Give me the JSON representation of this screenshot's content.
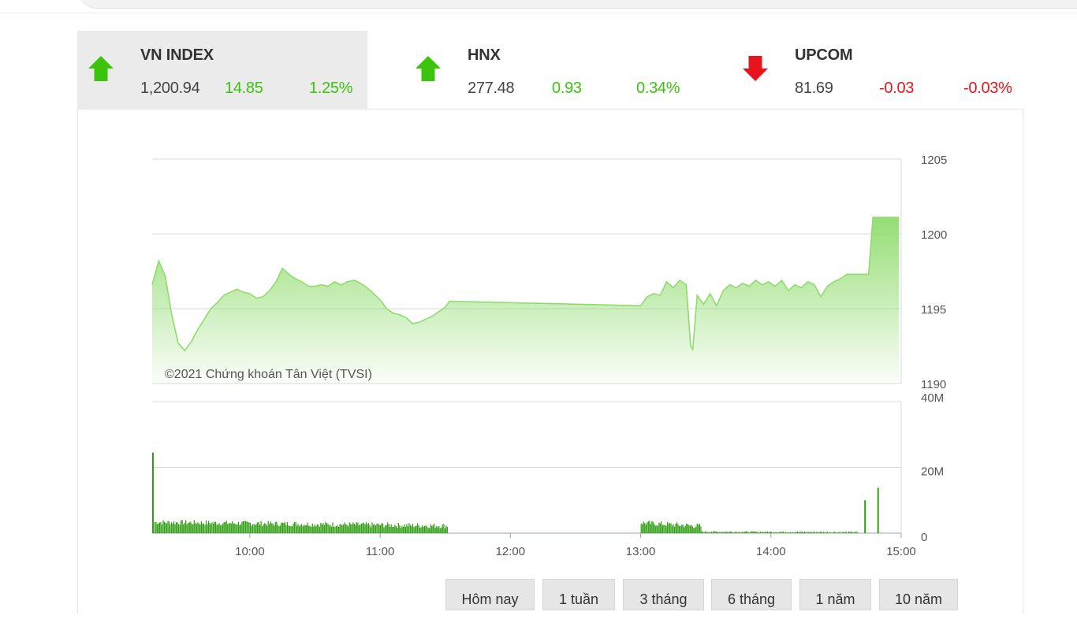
{
  "tickers": [
    {
      "name": "VN INDEX",
      "value": "1,200.94",
      "change": "14.85",
      "percent": "1.25%",
      "direction": "up"
    },
    {
      "name": "HNX",
      "value": "277.48",
      "change": "0.93",
      "percent": "0.34%",
      "direction": "up"
    },
    {
      "name": "UPCOM",
      "value": "81.69",
      "change": "-0.03",
      "percent": "-0.03%",
      "direction": "down"
    }
  ],
  "colors": {
    "up": "#3cc30c",
    "down": "#e8141c",
    "line": "#8fdc6d",
    "volume": "#2f9e10"
  },
  "chart_data": {
    "type": "area",
    "watermark": "©2021 Chứng khoán Tân Việt (TVSI)",
    "x_ticks": [
      "10:00",
      "11:00",
      "12:00",
      "13:00",
      "14:00",
      "15:00"
    ],
    "x_range": [
      "09:15",
      "15:00"
    ],
    "price": {
      "ylim": [
        1190,
        1205
      ],
      "y_ticks": [
        "1205",
        "1200",
        "1195",
        "1190"
      ],
      "points": [
        [
          "09:15",
          1196.6
        ],
        [
          "09:18",
          1198.2
        ],
        [
          "09:21",
          1197.2
        ],
        [
          "09:24",
          1194.6
        ],
        [
          "09:27",
          1192.7
        ],
        [
          "09:30",
          1192.2
        ],
        [
          "09:33",
          1192.8
        ],
        [
          "09:36",
          1193.6
        ],
        [
          "09:39",
          1194.3
        ],
        [
          "09:42",
          1195.0
        ],
        [
          "09:45",
          1195.4
        ],
        [
          "09:48",
          1195.9
        ],
        [
          "09:51",
          1196.1
        ],
        [
          "09:54",
          1196.3
        ],
        [
          "09:57",
          1196.1
        ],
        [
          "10:00",
          1196.0
        ],
        [
          "10:03",
          1195.7
        ],
        [
          "10:06",
          1195.8
        ],
        [
          "10:09",
          1196.2
        ],
        [
          "10:12",
          1196.8
        ],
        [
          "10:15",
          1197.7
        ],
        [
          "10:18",
          1197.3
        ],
        [
          "10:21",
          1197.0
        ],
        [
          "10:24",
          1196.8
        ],
        [
          "10:27",
          1196.5
        ],
        [
          "10:30",
          1196.5
        ],
        [
          "10:33",
          1196.6
        ],
        [
          "10:36",
          1196.5
        ],
        [
          "10:39",
          1196.8
        ],
        [
          "10:42",
          1196.6
        ],
        [
          "10:45",
          1196.8
        ],
        [
          "10:48",
          1196.9
        ],
        [
          "10:51",
          1196.7
        ],
        [
          "10:54",
          1196.4
        ],
        [
          "10:57",
          1196.0
        ],
        [
          "11:00",
          1195.6
        ],
        [
          "11:03",
          1195.0
        ],
        [
          "11:06",
          1194.7
        ],
        [
          "11:09",
          1194.6
        ],
        [
          "11:12",
          1194.4
        ],
        [
          "11:15",
          1194.0
        ],
        [
          "11:18",
          1194.1
        ],
        [
          "11:21",
          1194.3
        ],
        [
          "11:24",
          1194.5
        ],
        [
          "11:27",
          1194.8
        ],
        [
          "11:30",
          1195.1
        ],
        [
          "11:32",
          1195.5
        ],
        [
          "13:00",
          1195.2
        ],
        [
          "13:03",
          1195.8
        ],
        [
          "13:06",
          1196.0
        ],
        [
          "13:09",
          1195.9
        ],
        [
          "13:12",
          1196.8
        ],
        [
          "13:15",
          1196.4
        ],
        [
          "13:18",
          1196.9
        ],
        [
          "13:21",
          1196.6
        ],
        [
          "13:23",
          1192.5
        ],
        [
          "13:24",
          1192.3
        ],
        [
          "13:26",
          1195.9
        ],
        [
          "13:29",
          1195.3
        ],
        [
          "13:32",
          1196.0
        ],
        [
          "13:35",
          1195.2
        ],
        [
          "13:38",
          1196.2
        ],
        [
          "13:41",
          1196.6
        ],
        [
          "13:44",
          1196.4
        ],
        [
          "13:47",
          1196.7
        ],
        [
          "13:50",
          1196.5
        ],
        [
          "13:53",
          1196.9
        ],
        [
          "13:56",
          1196.6
        ],
        [
          "13:59",
          1196.8
        ],
        [
          "14:02",
          1196.5
        ],
        [
          "14:05",
          1196.9
        ],
        [
          "14:08",
          1196.2
        ],
        [
          "14:11",
          1196.6
        ],
        [
          "14:14",
          1196.4
        ],
        [
          "14:17",
          1196.8
        ],
        [
          "14:20",
          1196.6
        ],
        [
          "14:23",
          1195.8
        ],
        [
          "14:26",
          1196.5
        ],
        [
          "14:29",
          1196.8
        ],
        [
          "14:32",
          1197.0
        ],
        [
          "14:35",
          1197.3
        ],
        [
          "14:40",
          1197.3
        ],
        [
          "14:45",
          1197.3
        ],
        [
          "14:47",
          1201.1
        ],
        [
          "14:59",
          1201.1
        ]
      ]
    },
    "volume": {
      "ylim": [
        0,
        40
      ],
      "unit": "M",
      "y_ticks": [
        "40M",
        "20M",
        "0"
      ],
      "spikes": [
        [
          "09:15",
          24.5
        ],
        [
          "14:43",
          10.0
        ],
        [
          "14:49",
          13.8
        ]
      ]
    }
  },
  "period_buttons": [
    "Hôm nay",
    "1 tuần",
    "3 tháng",
    "6 tháng",
    "1 năm",
    "10 năm"
  ]
}
